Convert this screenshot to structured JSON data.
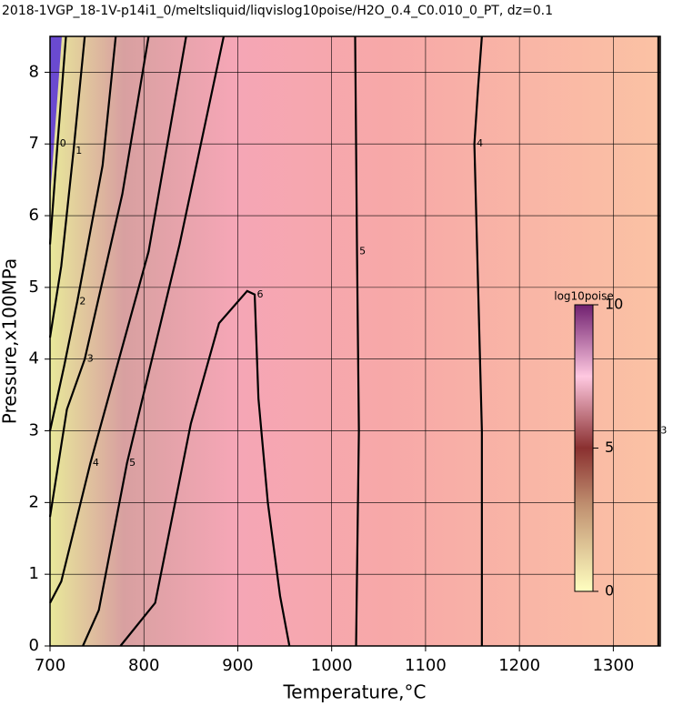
{
  "chart_data": {
    "type": "contour",
    "title": "2018-1VGP_18-1V-p14i1_0/meltsliquid/liqvislog10poise/H2O_0.4_C0.010_0_PT, dz=0.1",
    "x_label": "Temperature,°C",
    "y_label": "Pressure,x100MPa",
    "xlim": [
      700,
      1350
    ],
    "xticks": [
      700,
      800,
      900,
      1000,
      1100,
      1200,
      1300
    ],
    "ylim": [
      0,
      8.5
    ],
    "yticks": [
      0,
      1,
      2,
      3,
      4,
      5,
      6,
      7,
      8
    ],
    "grid": true,
    "contours": [
      {
        "level": 0,
        "x": [
          700,
          708,
          717
        ],
        "y": [
          5.6,
          7.0,
          8.5
        ]
      },
      {
        "level": 1,
        "x": [
          700,
          712,
          725,
          737
        ],
        "y": [
          4.3,
          5.3,
          6.9,
          8.5
        ]
      },
      {
        "level": 2,
        "x": [
          700,
          715,
          729,
          756,
          770
        ],
        "y": [
          3.0,
          3.9,
          4.8,
          6.7,
          8.5
        ]
      },
      {
        "level": 3,
        "x": [
          700,
          718,
          737,
          777,
          805
        ],
        "y": [
          1.8,
          3.3,
          4.0,
          6.3,
          8.5
        ]
      },
      {
        "level": 4,
        "x": [
          700,
          712,
          743,
          805,
          845
        ],
        "y": [
          0.6,
          0.9,
          2.55,
          5.5,
          8.5
        ]
      },
      {
        "level": 5,
        "x": [
          735,
          752,
          782,
          838,
          885
        ],
        "y": [
          0,
          0.5,
          2.55,
          5.6,
          8.5
        ]
      },
      {
        "level": 6,
        "x": [
          775,
          812,
          850,
          880,
          910,
          918,
          922,
          932,
          945,
          955
        ],
        "y": [
          0,
          0.6,
          3.1,
          4.5,
          4.95,
          4.9,
          3.45,
          2.0,
          0.7,
          0
        ]
      },
      {
        "level": 5,
        "x": [
          1026,
          1029,
          1027,
          1025
        ],
        "y": [
          0,
          3.0,
          5.5,
          8.5
        ]
      },
      {
        "level": 4,
        "x": [
          1160,
          1160,
          1152,
          1156,
          1160
        ],
        "y": [
          0,
          3.0,
          7.0,
          7.8,
          8.5
        ]
      },
      {
        "level": 3,
        "x": [
          1348,
          1348,
          1348
        ],
        "y": [
          0,
          3.0,
          8.5
        ]
      }
    ],
    "colorbar": {
      "label": "log10poise",
      "lim": [
        0,
        10
      ],
      "ticks": [
        0,
        5,
        10
      ]
    }
  }
}
